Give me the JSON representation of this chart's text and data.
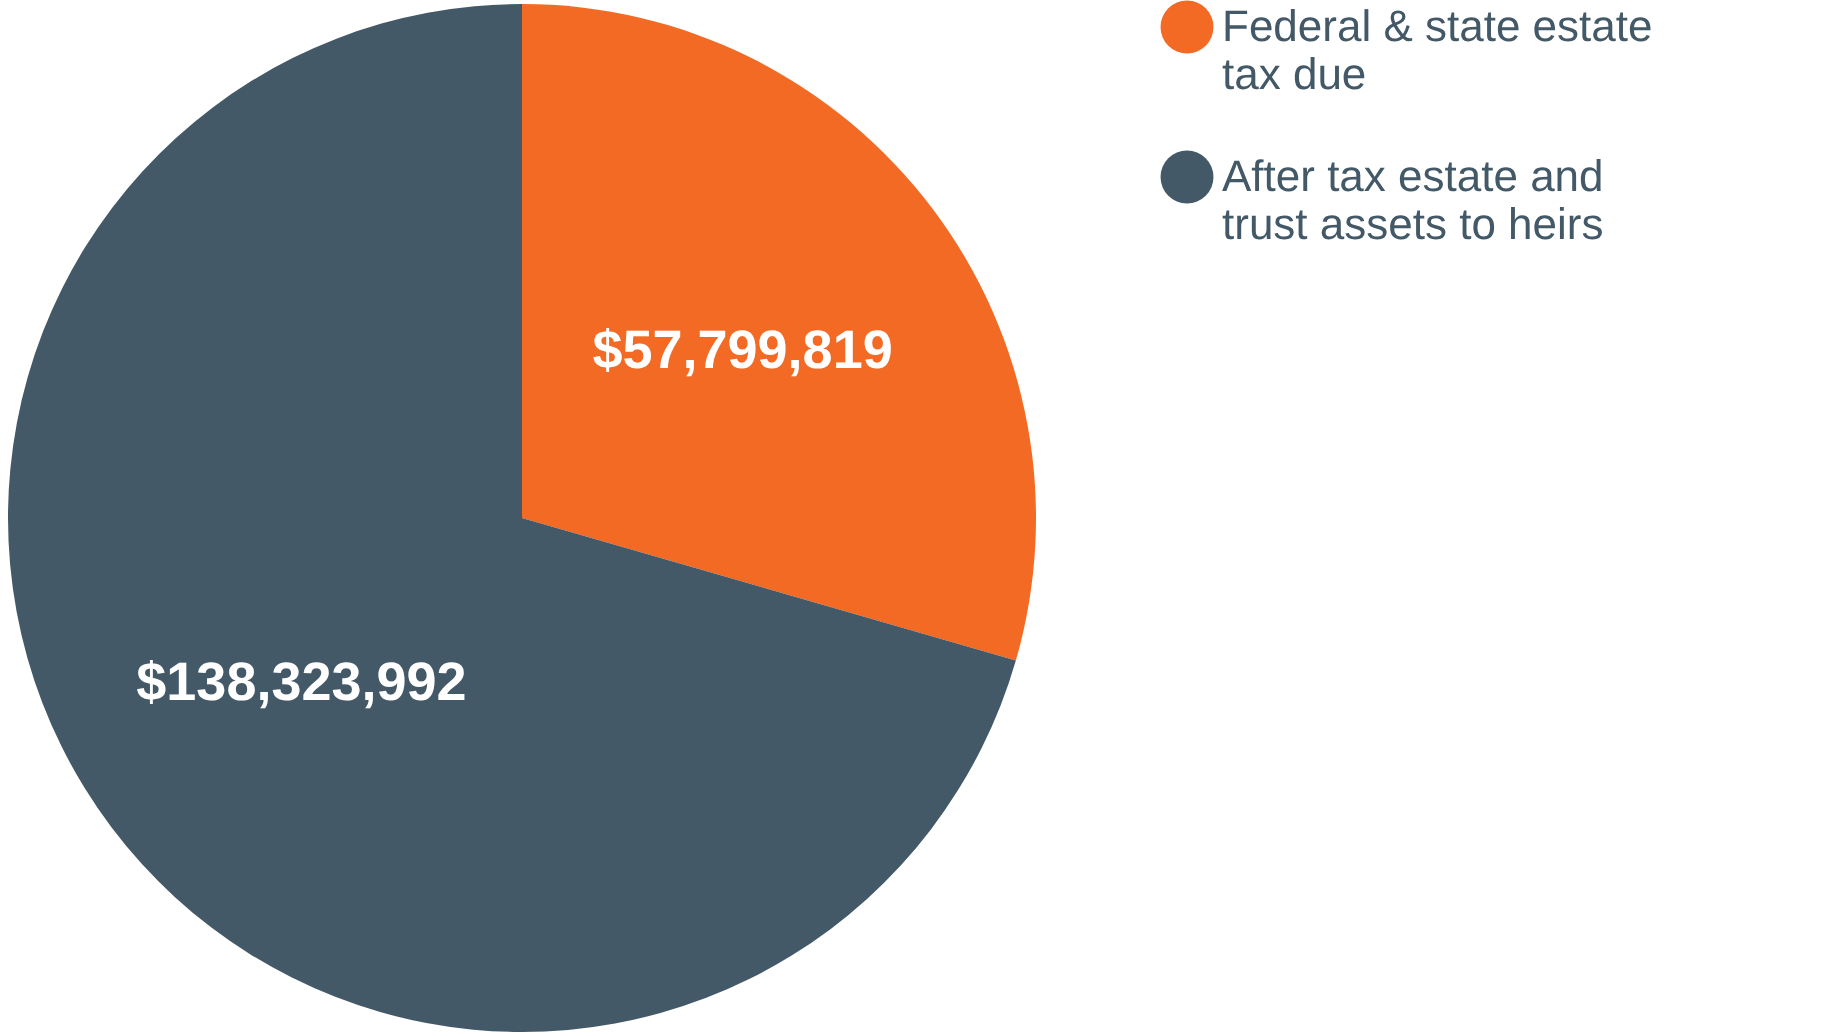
{
  "chart_data": {
    "type": "pie",
    "categories": [
      "Federal & state estate tax due",
      "After tax estate and trust assets to heirs"
    ],
    "values": [
      57799819,
      138323992
    ],
    "colors": [
      "#f26a24",
      "#435967"
    ],
    "value_labels": [
      "$57,799,819",
      "$138,323,992"
    ],
    "legend": "right"
  }
}
